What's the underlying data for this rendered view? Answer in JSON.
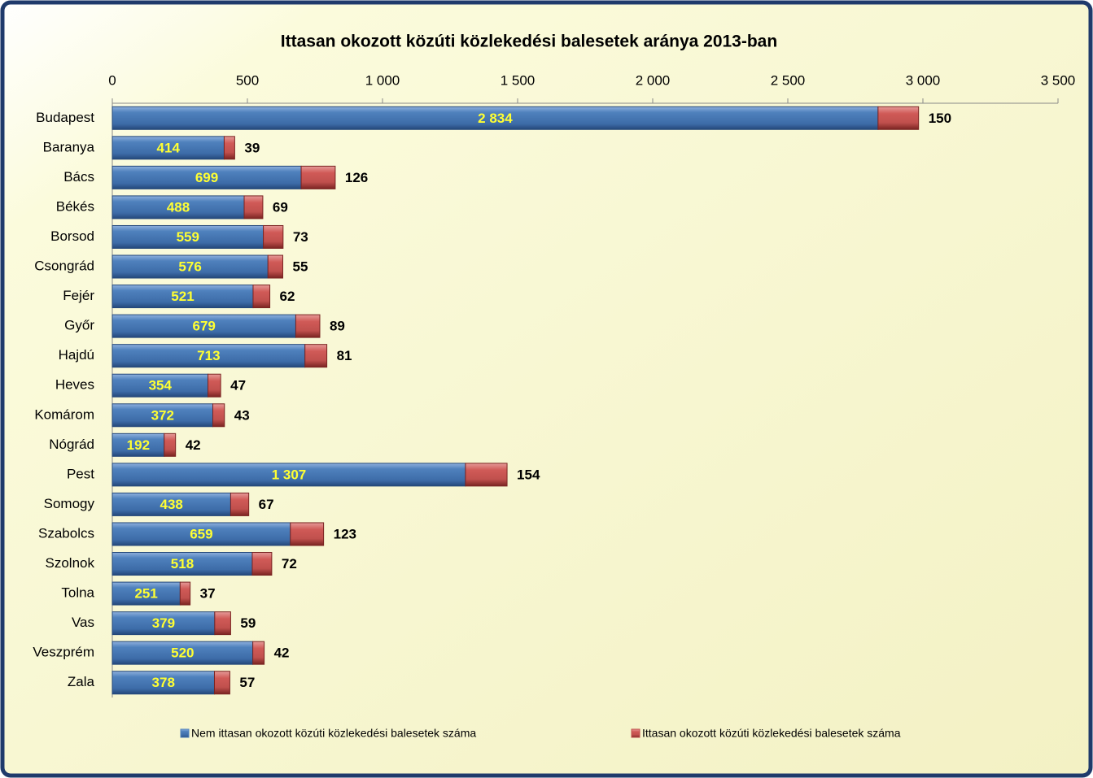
{
  "chart_data": {
    "type": "stacked_barh",
    "title": "Ittasan okozott közúti közlekedési balesetek aránya 2013-ban",
    "categories": [
      "Budapest",
      "Baranya",
      "Bács",
      "Békés",
      "Borsod",
      "Csongrád",
      "Fejér",
      "Győr",
      "Hajdú",
      "Heves",
      "Komárom",
      "Nógrád",
      "Pest",
      "Somogy",
      "Szabolcs",
      "Szolnok",
      "Tolna",
      "Vas",
      "Veszprém",
      "Zala"
    ],
    "series": [
      {
        "name": "Nem ittasan okozott közúti közlekedési balesetek száma",
        "color": "#4f81bd",
        "values": [
          2834,
          414,
          699,
          488,
          559,
          576,
          521,
          679,
          713,
          354,
          372,
          192,
          1307,
          438,
          659,
          518,
          251,
          379,
          520,
          378
        ],
        "value_labels": [
          "2 834",
          "414",
          "699",
          "488",
          "559",
          "576",
          "521",
          "679",
          "713",
          "354",
          "372",
          "192",
          "1 307",
          "438",
          "659",
          "518",
          "251",
          "379",
          "520",
          "378"
        ]
      },
      {
        "name": "Ittasan okozott közúti közlekedési balesetek száma",
        "color": "#c0504d",
        "values": [
          150,
          39,
          126,
          69,
          73,
          55,
          62,
          89,
          81,
          47,
          43,
          42,
          154,
          67,
          123,
          72,
          37,
          59,
          42,
          57
        ]
      }
    ],
    "xlim": [
      0,
      3500
    ],
    "xticks": [
      0,
      500,
      {
        "value": 1000,
        "label": "1 000"
      },
      {
        "value": 1500,
        "label": "1 500"
      },
      {
        "value": 2000,
        "label": "2 000"
      },
      {
        "value": 2500,
        "label": "2 500"
      },
      {
        "value": 3000,
        "label": "3 000"
      },
      {
        "value": 3500,
        "label": "3 500"
      }
    ],
    "legend": "bottom"
  }
}
